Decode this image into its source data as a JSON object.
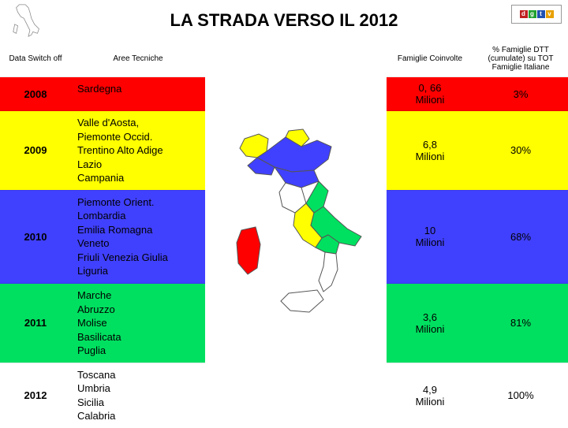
{
  "title": "LA STRADA VERSO IL 2012",
  "logo": {
    "letters": [
      "d",
      "g",
      "t",
      "v"
    ],
    "colors": [
      "#c02020",
      "#20a030",
      "#2050b0",
      "#e8a000"
    ]
  },
  "headers": {
    "col1": "Data Switch off",
    "col2": "Aree Tecniche",
    "col4": "Famiglie Coinvolte",
    "col5": "% Famiglie DTT (cumulate) su TOT Famiglie Italiane"
  },
  "row_colors": [
    "#ff0000",
    "#ffff00",
    "#4040ff",
    "#00e060",
    "#ffffff"
  ],
  "rows": [
    {
      "year": "2008",
      "areas": "Sardegna",
      "fam": "0, 66 Milioni",
      "pct": "3%"
    },
    {
      "year": "2009",
      "areas": "Valle d'Aosta,\nPiemonte Occid.\nTrentino Alto Adige\nLazio\nCampania",
      "fam": "6,8 Milioni",
      "pct": "30%"
    },
    {
      "year": "2010",
      "areas": "Piemonte Orient.\nLombardia\nEmilia Romagna\nVeneto\nFriuli Venezia Giulia\nLiguria",
      "fam": "10 Milioni",
      "pct": "68%"
    },
    {
      "year": "2011",
      "areas": "Marche\nAbruzzo\nMolise\nBasilicata\nPuglia",
      "fam": "3,6 Milioni",
      "pct": "81%"
    },
    {
      "year": "2012",
      "areas": "Toscana\nUmbria\nSicilia\nCalabria",
      "fam": "4,9 Milioni",
      "pct": "100%"
    }
  ],
  "map_colors": {
    "north_west": "#ffff00",
    "north_east": "#4040ff",
    "center_south": "#00e060",
    "tuscany": "#ffffff",
    "sicily_calabria": "#ffffff",
    "sardinia": "#ff0000",
    "stroke": "#555555"
  }
}
